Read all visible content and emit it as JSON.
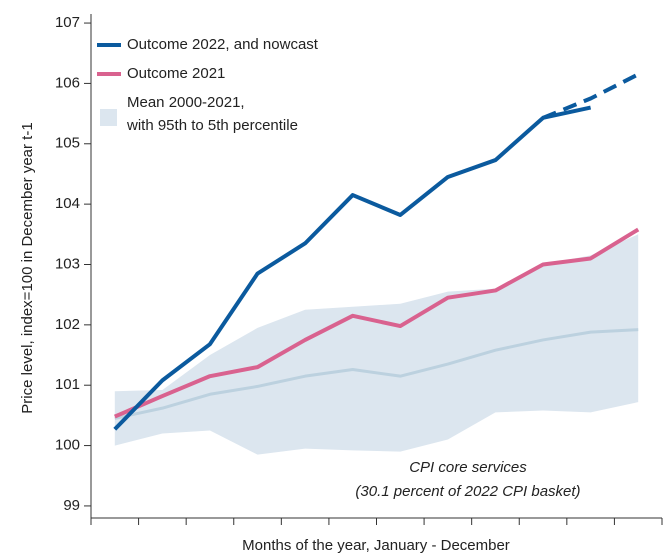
{
  "chart_data": {
    "type": "line",
    "ylabel": "Price level, index=100 in December year t-1",
    "xlabel": "Months of the year, January - December",
    "categories": [
      null,
      null,
      null,
      null,
      null,
      null,
      null,
      null,
      null,
      null,
      null,
      null
    ],
    "ylim": [
      98.8,
      107.15
    ],
    "yticks": [
      99,
      100,
      101,
      102,
      103,
      104,
      105,
      106,
      107
    ],
    "series": [
      {
        "name": "Outcome 2022, and nowcast",
        "color": "#0b5a9e",
        "values": [
          100.27,
          101.08,
          101.68,
          102.85,
          103.35,
          104.15,
          103.82,
          104.45,
          104.73,
          105.43,
          105.6,
          null
        ]
      },
      {
        "color": "#0b5a9e",
        "dashed": true,
        "values": [
          null,
          null,
          null,
          null,
          null,
          null,
          null,
          null,
          null,
          105.43,
          105.75,
          106.15
        ]
      },
      {
        "name": "Outcome 2021",
        "color": "#d9628f",
        "values": [
          100.48,
          100.82,
          101.15,
          101.3,
          101.75,
          102.15,
          101.98,
          102.45,
          102.57,
          103.0,
          103.1,
          103.58
        ]
      }
    ],
    "band": {
      "name": [
        "Mean 2000-2021,",
        "with 95th to 5th percentile"
      ],
      "color": "#dce6ef",
      "line_color": "#bcd1df",
      "values": [
        100.45,
        100.62,
        100.85,
        100.98,
        101.15,
        101.26,
        101.15,
        101.35,
        101.58,
        101.75,
        101.88,
        101.92
      ],
      "upper": [
        100.9,
        100.92,
        101.5,
        101.95,
        102.25,
        102.3,
        102.35,
        102.55,
        102.6,
        103.0,
        103.15,
        103.5
      ],
      "lower": [
        100.0,
        100.2,
        100.25,
        99.85,
        99.95,
        99.92,
        99.9,
        100.1,
        100.55,
        100.58,
        100.55,
        100.72
      ]
    },
    "annotation": [
      "CPI core services",
      "(30.1 percent of 2022 CPI basket)"
    ]
  }
}
